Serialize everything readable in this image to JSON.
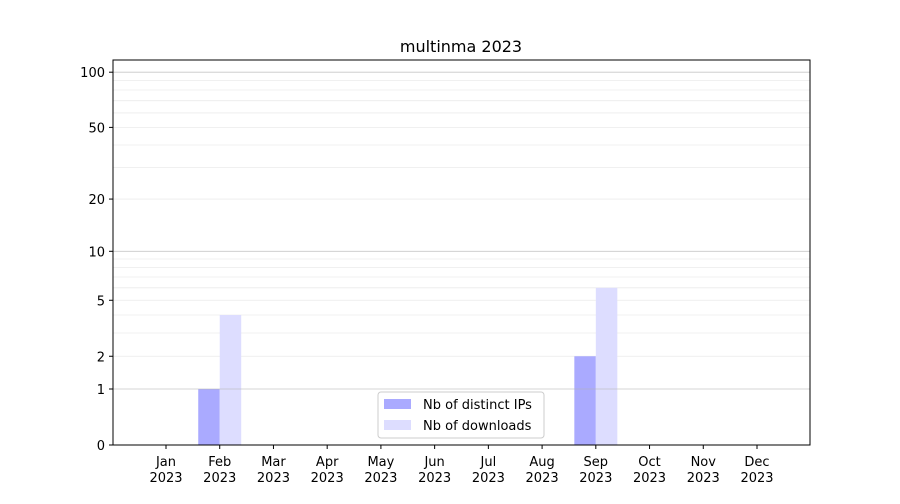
{
  "chart_data": {
    "type": "bar",
    "title": "multinma 2023",
    "xlabel": "",
    "ylabel": "",
    "yscale": "log(1+y)",
    "ylim": [
      0,
      116
    ],
    "grid": "horizontal major and minor",
    "legend_placement": "lower-center",
    "categories": [
      "Jan\n2023",
      "Feb\n2023",
      "Mar\n2023",
      "Apr\n2023",
      "May\n2023",
      "Jun\n2023",
      "Jul\n2023",
      "Aug\n2023",
      "Sep\n2023",
      "Oct\n2023",
      "Nov\n2023",
      "Dec\n2023"
    ],
    "yticks": [
      0,
      1,
      2,
      5,
      10,
      20,
      50,
      100
    ],
    "series": [
      {
        "name": "Nb of distinct IPs",
        "color": "#aaaaff",
        "values": [
          0,
          1,
          0,
          0,
          0,
          0,
          0,
          0,
          2,
          0,
          0,
          0
        ]
      },
      {
        "name": "Nb of downloads",
        "color": "#ddddff",
        "values": [
          0,
          4,
          0,
          0,
          0,
          0,
          0,
          0,
          6,
          0,
          0,
          0
        ]
      }
    ]
  }
}
